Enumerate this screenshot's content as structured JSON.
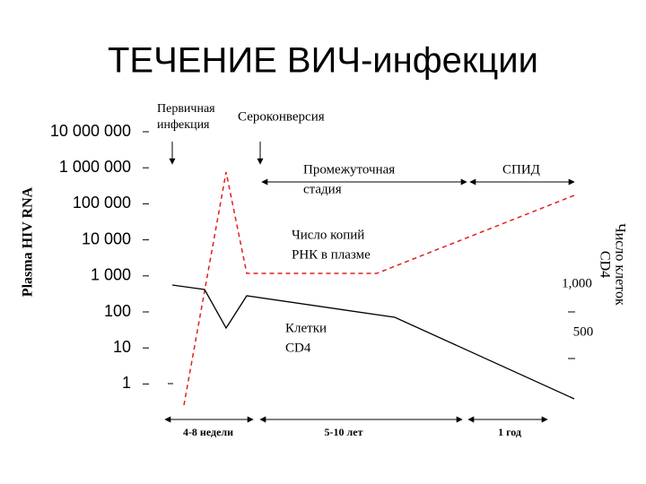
{
  "header": {
    "title": "ТЕЧЕНИЕ ВИЧ-инфекции"
  },
  "axes": {
    "left_title": "Plasma HIV RNA",
    "left_ticks": [
      "10 000 000",
      "1 000 000",
      "100 000",
      "10 000",
      "1 000",
      "100",
      "10",
      "1"
    ],
    "right_title": [
      "Число клеток",
      "CD4"
    ],
    "right_ticks": [
      "1,000",
      "500"
    ]
  },
  "annotations": {
    "primary_infection": [
      "Первичная",
      "инфекция"
    ],
    "seroconversion": "Сероконверсия",
    "intermediate": [
      "Промежуточная",
      "стадия"
    ],
    "aids": "СПИД",
    "rna_copies": [
      "Число копий",
      "РНК в плазме"
    ],
    "cd4_cells": [
      "Клетки",
      "CD4"
    ]
  },
  "periods": [
    "4-8 недели",
    "5-10 лет",
    "1 год"
  ]
}
